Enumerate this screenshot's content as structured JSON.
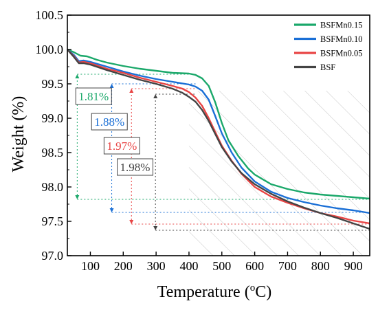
{
  "chart_data": {
    "type": "line",
    "title": "",
    "xlabel": "Temperature (",
    "xlabel_sup": "o",
    "xlabel_end": "C)",
    "ylabel": "Weight (%)",
    "xlim": [
      30,
      950
    ],
    "ylim": [
      97.0,
      100.5
    ],
    "x_ticks": [
      100,
      200,
      300,
      400,
      500,
      600,
      700,
      800,
      900
    ],
    "y_ticks": [
      97.0,
      97.5,
      98.0,
      98.5,
      99.0,
      99.5,
      100.0,
      100.5
    ],
    "grid": false,
    "legend_position": "top-right",
    "shaded_region": {
      "x_from": 400,
      "x_to": 950,
      "pattern": "diagonal-hatch",
      "color": "#c8c8c8"
    },
    "series": [
      {
        "name": "BSFMn0.15",
        "color": "#1aa86a",
        "points": [
          [
            30,
            100.0
          ],
          [
            50,
            99.96
          ],
          [
            70,
            99.91
          ],
          [
            90,
            99.9
          ],
          [
            120,
            99.85
          ],
          [
            150,
            99.81
          ],
          [
            200,
            99.76
          ],
          [
            250,
            99.72
          ],
          [
            300,
            99.69
          ],
          [
            350,
            99.66
          ],
          [
            400,
            99.65
          ],
          [
            420,
            99.63
          ],
          [
            440,
            99.58
          ],
          [
            460,
            99.47
          ],
          [
            480,
            99.23
          ],
          [
            500,
            98.93
          ],
          [
            520,
            98.68
          ],
          [
            550,
            98.45
          ],
          [
            580,
            98.27
          ],
          [
            600,
            98.18
          ],
          [
            650,
            98.04
          ],
          [
            700,
            97.97
          ],
          [
            750,
            97.92
          ],
          [
            800,
            97.89
          ],
          [
            850,
            97.87
          ],
          [
            900,
            97.85
          ],
          [
            950,
            97.83
          ]
        ],
        "drop_label": "1.81%",
        "drop_from": 99.64,
        "drop_to": 97.82,
        "drop_x": 60,
        "drop_label_x": 110,
        "drop_label_y": 99.32
      },
      {
        "name": "BSFMn0.10",
        "color": "#1a6fd6",
        "points": [
          [
            30,
            100.0
          ],
          [
            50,
            99.92
          ],
          [
            65,
            99.83
          ],
          [
            80,
            99.84
          ],
          [
            100,
            99.82
          ],
          [
            150,
            99.75
          ],
          [
            200,
            99.68
          ],
          [
            250,
            99.62
          ],
          [
            300,
            99.57
          ],
          [
            350,
            99.53
          ],
          [
            400,
            99.49
          ],
          [
            420,
            99.46
          ],
          [
            440,
            99.4
          ],
          [
            460,
            99.27
          ],
          [
            480,
            99.03
          ],
          [
            500,
            98.78
          ],
          [
            530,
            98.5
          ],
          [
            560,
            98.28
          ],
          [
            600,
            98.08
          ],
          [
            650,
            97.93
          ],
          [
            700,
            97.84
          ],
          [
            750,
            97.78
          ],
          [
            800,
            97.73
          ],
          [
            850,
            97.69
          ],
          [
            900,
            97.66
          ],
          [
            950,
            97.62
          ]
        ],
        "drop_label": "1.88%",
        "drop_from": 99.5,
        "drop_to": 97.63,
        "drop_x": 165,
        "drop_label_x": 158,
        "drop_label_y": 98.95
      },
      {
        "name": "BSFMn0.05",
        "color": "#e84444",
        "points": [
          [
            30,
            100.0
          ],
          [
            50,
            99.9
          ],
          [
            65,
            99.81
          ],
          [
            80,
            99.82
          ],
          [
            100,
            99.8
          ],
          [
            150,
            99.72
          ],
          [
            200,
            99.66
          ],
          [
            250,
            99.59
          ],
          [
            300,
            99.53
          ],
          [
            350,
            99.47
          ],
          [
            380,
            99.43
          ],
          [
            400,
            99.38
          ],
          [
            420,
            99.3
          ],
          [
            440,
            99.18
          ],
          [
            460,
            99.0
          ],
          [
            480,
            98.8
          ],
          [
            500,
            98.6
          ],
          [
            530,
            98.38
          ],
          [
            560,
            98.19
          ],
          [
            600,
            98.0
          ],
          [
            650,
            97.86
          ],
          [
            700,
            97.77
          ],
          [
            750,
            97.69
          ],
          [
            800,
            97.62
          ],
          [
            850,
            97.57
          ],
          [
            900,
            97.51
          ],
          [
            950,
            97.47
          ]
        ],
        "drop_label": "1.97%",
        "drop_from": 99.43,
        "drop_to": 97.46,
        "drop_x": 225,
        "drop_label_x": 196,
        "drop_label_y": 98.6
      },
      {
        "name": "BSF",
        "color": "#444444",
        "points": [
          [
            30,
            100.0
          ],
          [
            50,
            99.89
          ],
          [
            65,
            99.8
          ],
          [
            80,
            99.8
          ],
          [
            100,
            99.78
          ],
          [
            150,
            99.7
          ],
          [
            200,
            99.63
          ],
          [
            250,
            99.56
          ],
          [
            300,
            99.5
          ],
          [
            350,
            99.43
          ],
          [
            380,
            99.37
          ],
          [
            400,
            99.31
          ],
          [
            420,
            99.24
          ],
          [
            440,
            99.12
          ],
          [
            460,
            98.96
          ],
          [
            480,
            98.77
          ],
          [
            500,
            98.58
          ],
          [
            530,
            98.37
          ],
          [
            560,
            98.2
          ],
          [
            600,
            98.04
          ],
          [
            650,
            97.9
          ],
          [
            700,
            97.79
          ],
          [
            750,
            97.7
          ],
          [
            800,
            97.62
          ],
          [
            850,
            97.55
          ],
          [
            900,
            97.47
          ],
          [
            950,
            97.39
          ]
        ],
        "drop_label": "1.98%",
        "drop_from": 99.35,
        "drop_to": 97.37,
        "drop_x": 298,
        "drop_label_x": 236,
        "drop_label_y": 98.29
      }
    ]
  }
}
